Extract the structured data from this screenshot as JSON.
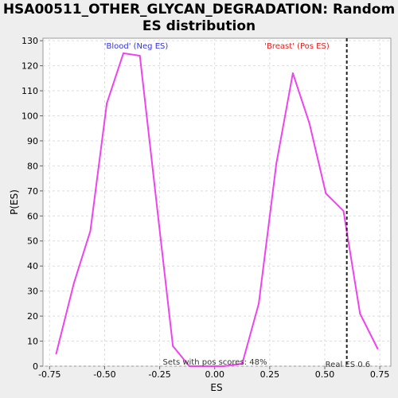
{
  "chart_data": {
    "type": "line",
    "title": "HSA00511_OTHER_GLYCAN_DEGRADATION: Random ES distribution",
    "xlabel": "ES",
    "ylabel": "P(ES)",
    "xlim": [
      -0.78,
      0.8
    ],
    "ylim": [
      0,
      131
    ],
    "x_ticks": [
      "-0.75",
      "-0.50",
      "-0.25",
      "0.00",
      "0.25",
      "0.50",
      "0.75"
    ],
    "y_ticks": [
      "0",
      "10",
      "20",
      "30",
      "40",
      "50",
      "60",
      "70",
      "80",
      "90",
      "100",
      "110",
      "120",
      "130"
    ],
    "grid": true,
    "series": [
      {
        "color": "#ee44ee",
        "x": [
          -0.72,
          -0.64,
          -0.565,
          -0.49,
          -0.415,
          -0.34,
          -0.265,
          -0.19,
          -0.115,
          -0.04,
          0.04,
          0.125,
          0.2,
          0.28,
          0.355,
          0.43,
          0.505,
          0.585,
          0.66,
          0.74
        ],
        "y": [
          5,
          33,
          54,
          105,
          125,
          124,
          66,
          8,
          0,
          0,
          0,
          1,
          25,
          81,
          117,
          97,
          69,
          62,
          21,
          7
        ]
      }
    ],
    "annotations": {
      "neg_label": "'Blood' (Neg ES)",
      "pos_label": "'Breast' (Pos ES)",
      "neg_color": "#3333dd",
      "pos_color": "#dd2222",
      "sets_text": "Sets with pos scores: 48%",
      "real_es_text": "Real ES 0.6",
      "real_es": 0.6
    }
  }
}
